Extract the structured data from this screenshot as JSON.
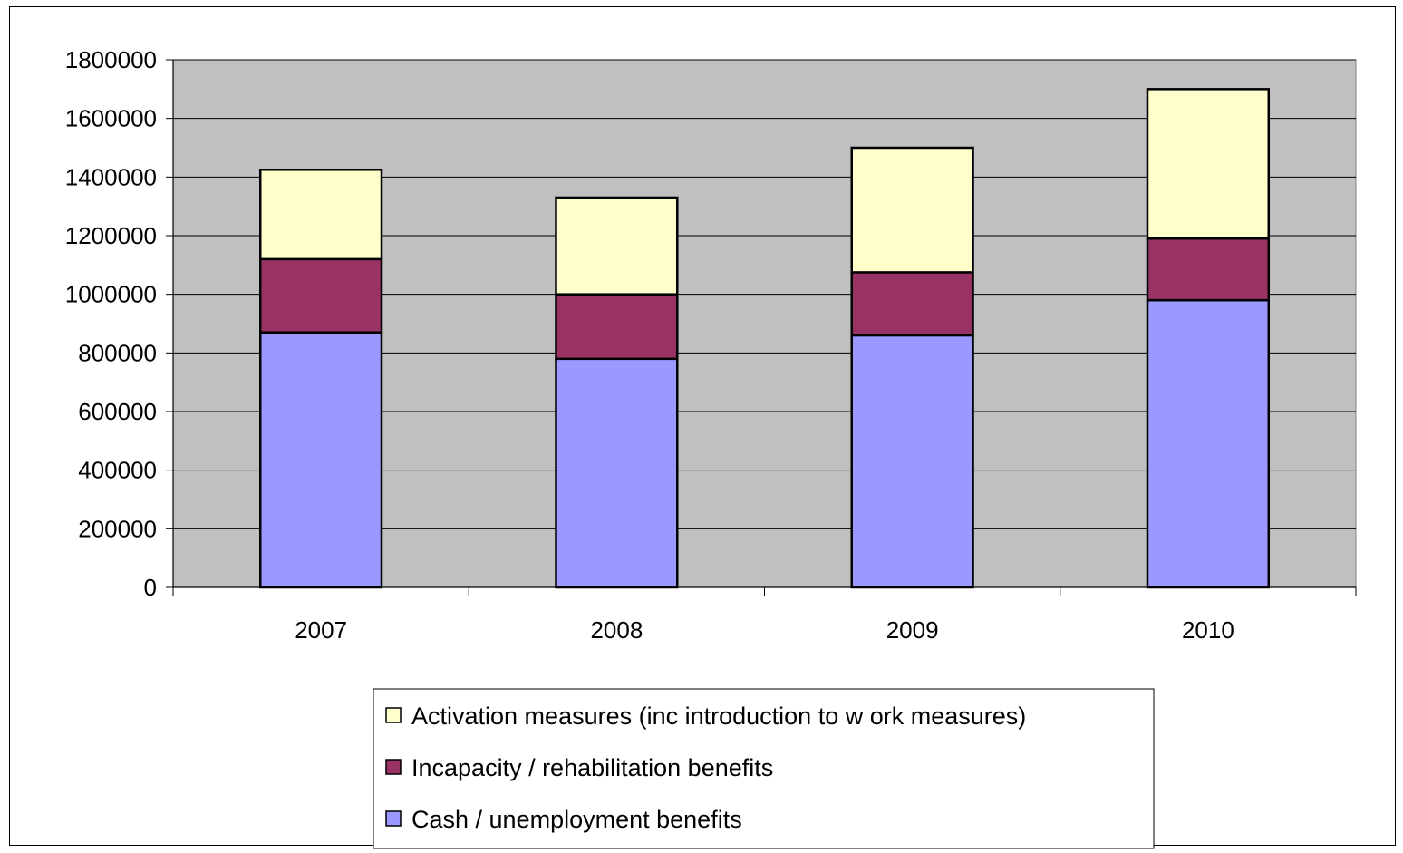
{
  "chart_data": {
    "type": "bar",
    "stacked": true,
    "title": "",
    "xlabel": "",
    "ylabel": "",
    "categories": [
      "2007",
      "2008",
      "2009",
      "2010"
    ],
    "series": [
      {
        "name": "Cash / unemployment benefits",
        "color": "#9999ff",
        "values": [
          870000,
          780000,
          860000,
          980000
        ]
      },
      {
        "name": "Incapacity / rehabilitation benefits",
        "color": "#993366",
        "values": [
          250000,
          220000,
          215000,
          210000
        ]
      },
      {
        "name": "Activation measures (inc introduction to w ork measures)",
        "color": "#ffffcc",
        "values": [
          305000,
          330000,
          425000,
          510000
        ]
      }
    ],
    "ylim": [
      0,
      1800000
    ],
    "yticks": [
      0,
      200000,
      400000,
      600000,
      800000,
      1000000,
      1200000,
      1400000,
      1600000,
      1800000
    ],
    "ytick_labels": [
      "0",
      "200000",
      "400000",
      "600000",
      "800000",
      "1000000",
      "1200000",
      "1400000",
      "1600000",
      "1800000"
    ],
    "grid": true,
    "plot_background": "#c0c0c0",
    "legend_position": "bottom",
    "legend_order": [
      "Activation measures (inc introduction to w ork measures)",
      "Incapacity / rehabilitation benefits",
      "Cash / unemployment benefits"
    ]
  }
}
